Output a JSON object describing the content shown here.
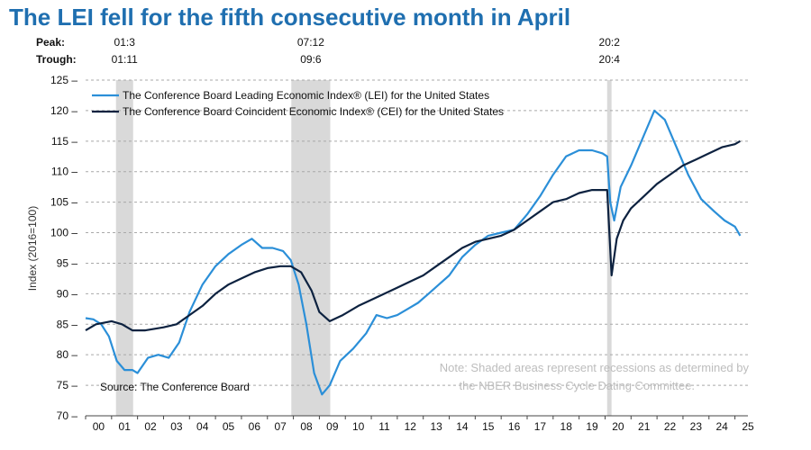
{
  "chart_data": {
    "type": "line",
    "title": "The LEI fell for the fifth consecutive month in April",
    "ylabel": "Index (2016=100)",
    "xlabel": "",
    "ylim": [
      70,
      125
    ],
    "xlim": [
      2000,
      2025.5
    ],
    "yticks": [
      70,
      75,
      80,
      85,
      90,
      95,
      100,
      105,
      110,
      115,
      120,
      125
    ],
    "xtick_labels": [
      "00",
      "01",
      "02",
      "03",
      "04",
      "05",
      "06",
      "07",
      "08",
      "09",
      "10",
      "11",
      "12",
      "13",
      "14",
      "15",
      "16",
      "17",
      "18",
      "19",
      "20",
      "21",
      "22",
      "23",
      "24",
      "25"
    ],
    "grid": "horizontal dashed",
    "legend_position": "top-left",
    "peak_label": "Peak:",
    "trough_label": "Trough:",
    "recessions": [
      {
        "peak": "01:3",
        "trough": "01:11",
        "start": 2001.17,
        "end": 2001.83
      },
      {
        "peak": "07:12",
        "trough": "09:6",
        "start": 2007.92,
        "end": 2009.42
      },
      {
        "peak": "20:2",
        "trough": "20:4",
        "start": 2020.08,
        "end": 2020.25
      }
    ],
    "series": [
      {
        "name": "The Conference Board Leading Economic Index® (LEI) for the United States",
        "color": "#2b8fd8",
        "points": [
          [
            2000,
            86
          ],
          [
            2000.3,
            85.8
          ],
          [
            2000.6,
            85
          ],
          [
            2000.9,
            83
          ],
          [
            2001.2,
            79
          ],
          [
            2001.5,
            77.5
          ],
          [
            2001.8,
            77.5
          ],
          [
            2002,
            77
          ],
          [
            2002.4,
            79.5
          ],
          [
            2002.8,
            80
          ],
          [
            2003.2,
            79.5
          ],
          [
            2003.6,
            82
          ],
          [
            2004,
            87
          ],
          [
            2004.5,
            91.5
          ],
          [
            2005,
            94.5
          ],
          [
            2005.5,
            96.5
          ],
          [
            2006,
            98
          ],
          [
            2006.4,
            99
          ],
          [
            2006.8,
            97.5
          ],
          [
            2007.2,
            97.5
          ],
          [
            2007.6,
            97
          ],
          [
            2007.9,
            95.5
          ],
          [
            2008.2,
            91.5
          ],
          [
            2008.5,
            85
          ],
          [
            2008.8,
            77
          ],
          [
            2009.1,
            73.5
          ],
          [
            2009.4,
            75
          ],
          [
            2009.8,
            79
          ],
          [
            2010.3,
            81
          ],
          [
            2010.8,
            83.5
          ],
          [
            2011.2,
            86.5
          ],
          [
            2011.6,
            86
          ],
          [
            2012,
            86.5
          ],
          [
            2012.4,
            87.5
          ],
          [
            2012.8,
            88.5
          ],
          [
            2013.2,
            90
          ],
          [
            2013.6,
            91.5
          ],
          [
            2014,
            93
          ],
          [
            2014.5,
            96
          ],
          [
            2015,
            98
          ],
          [
            2015.5,
            99.5
          ],
          [
            2016,
            100
          ],
          [
            2016.5,
            100.5
          ],
          [
            2017,
            103
          ],
          [
            2017.5,
            106
          ],
          [
            2018,
            109.5
          ],
          [
            2018.5,
            112.5
          ],
          [
            2019,
            113.5
          ],
          [
            2019.5,
            113.5
          ],
          [
            2019.9,
            113
          ],
          [
            2020.08,
            112.5
          ],
          [
            2020.2,
            105
          ],
          [
            2020.35,
            102
          ],
          [
            2020.6,
            107.5
          ],
          [
            2021,
            111
          ],
          [
            2021.5,
            116
          ],
          [
            2021.9,
            120
          ],
          [
            2022.3,
            118.5
          ],
          [
            2022.7,
            114.5
          ],
          [
            2023.2,
            109.5
          ],
          [
            2023.7,
            105.5
          ],
          [
            2024.2,
            103.5
          ],
          [
            2024.6,
            102
          ],
          [
            2025,
            101
          ],
          [
            2025.2,
            99.5
          ]
        ]
      },
      {
        "name": "The Conference Board Coincident Economic Index® (CEI) for the United States",
        "color": "#0d2240",
        "points": [
          [
            2000,
            84
          ],
          [
            2000.4,
            85
          ],
          [
            2001,
            85.5
          ],
          [
            2001.4,
            85
          ],
          [
            2001.8,
            84
          ],
          [
            2002.3,
            84
          ],
          [
            2003,
            84.5
          ],
          [
            2003.5,
            85
          ],
          [
            2004,
            86.5
          ],
          [
            2004.5,
            88
          ],
          [
            2005,
            90
          ],
          [
            2005.5,
            91.5
          ],
          [
            2006,
            92.5
          ],
          [
            2006.5,
            93.5
          ],
          [
            2007,
            94.2
          ],
          [
            2007.5,
            94.5
          ],
          [
            2007.9,
            94.5
          ],
          [
            2008.3,
            93.5
          ],
          [
            2008.7,
            90.5
          ],
          [
            2009,
            87
          ],
          [
            2009.4,
            85.5
          ],
          [
            2009.9,
            86.5
          ],
          [
            2010.5,
            88
          ],
          [
            2011,
            89
          ],
          [
            2011.5,
            90
          ],
          [
            2012,
            91
          ],
          [
            2012.5,
            92
          ],
          [
            2013,
            93
          ],
          [
            2013.5,
            94.5
          ],
          [
            2014,
            96
          ],
          [
            2014.5,
            97.5
          ],
          [
            2015,
            98.5
          ],
          [
            2015.5,
            99
          ],
          [
            2016,
            99.5
          ],
          [
            2016.5,
            100.5
          ],
          [
            2017,
            102
          ],
          [
            2017.5,
            103.5
          ],
          [
            2018,
            105
          ],
          [
            2018.5,
            105.5
          ],
          [
            2019,
            106.5
          ],
          [
            2019.5,
            107
          ],
          [
            2020.08,
            107
          ],
          [
            2020.25,
            93
          ],
          [
            2020.45,
            99
          ],
          [
            2020.7,
            102
          ],
          [
            2021,
            104
          ],
          [
            2021.5,
            106
          ],
          [
            2022,
            108
          ],
          [
            2022.5,
            109.5
          ],
          [
            2023,
            111
          ],
          [
            2023.5,
            112
          ],
          [
            2024,
            113
          ],
          [
            2024.5,
            114
          ],
          [
            2025,
            114.5
          ],
          [
            2025.2,
            115
          ]
        ]
      }
    ],
    "source": "Source: The Conference Board",
    "note_line1": "Note: Shaded areas represent recessions as determined by",
    "note_line2": "the NBER Business Cycle Dating Committee."
  }
}
